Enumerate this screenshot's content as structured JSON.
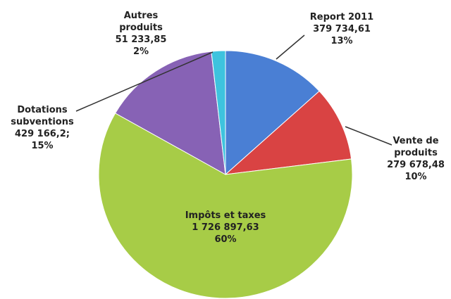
{
  "chart_data": {
    "type": "pie",
    "categories": [
      "Report 2011",
      "Vente de produits",
      "Impôts et taxes",
      "Dotations subventions",
      "Autres produits"
    ],
    "values": [
      379734.61,
      279678.48,
      1726897.63,
      429166.2,
      51233.85
    ],
    "value_labels": [
      "379 734,61",
      "279 678,48",
      "1 726 897,63",
      "429 166,2;",
      "51 233,85"
    ],
    "percentages": [
      13,
      10,
      60,
      15,
      2
    ],
    "percentage_labels": [
      "13%",
      "10%",
      "60%",
      "15%",
      "2%"
    ],
    "colors": [
      "#4a7fd4",
      "#d94343",
      "#a7cc47",
      "#8762b5",
      "#3ec3de"
    ]
  }
}
